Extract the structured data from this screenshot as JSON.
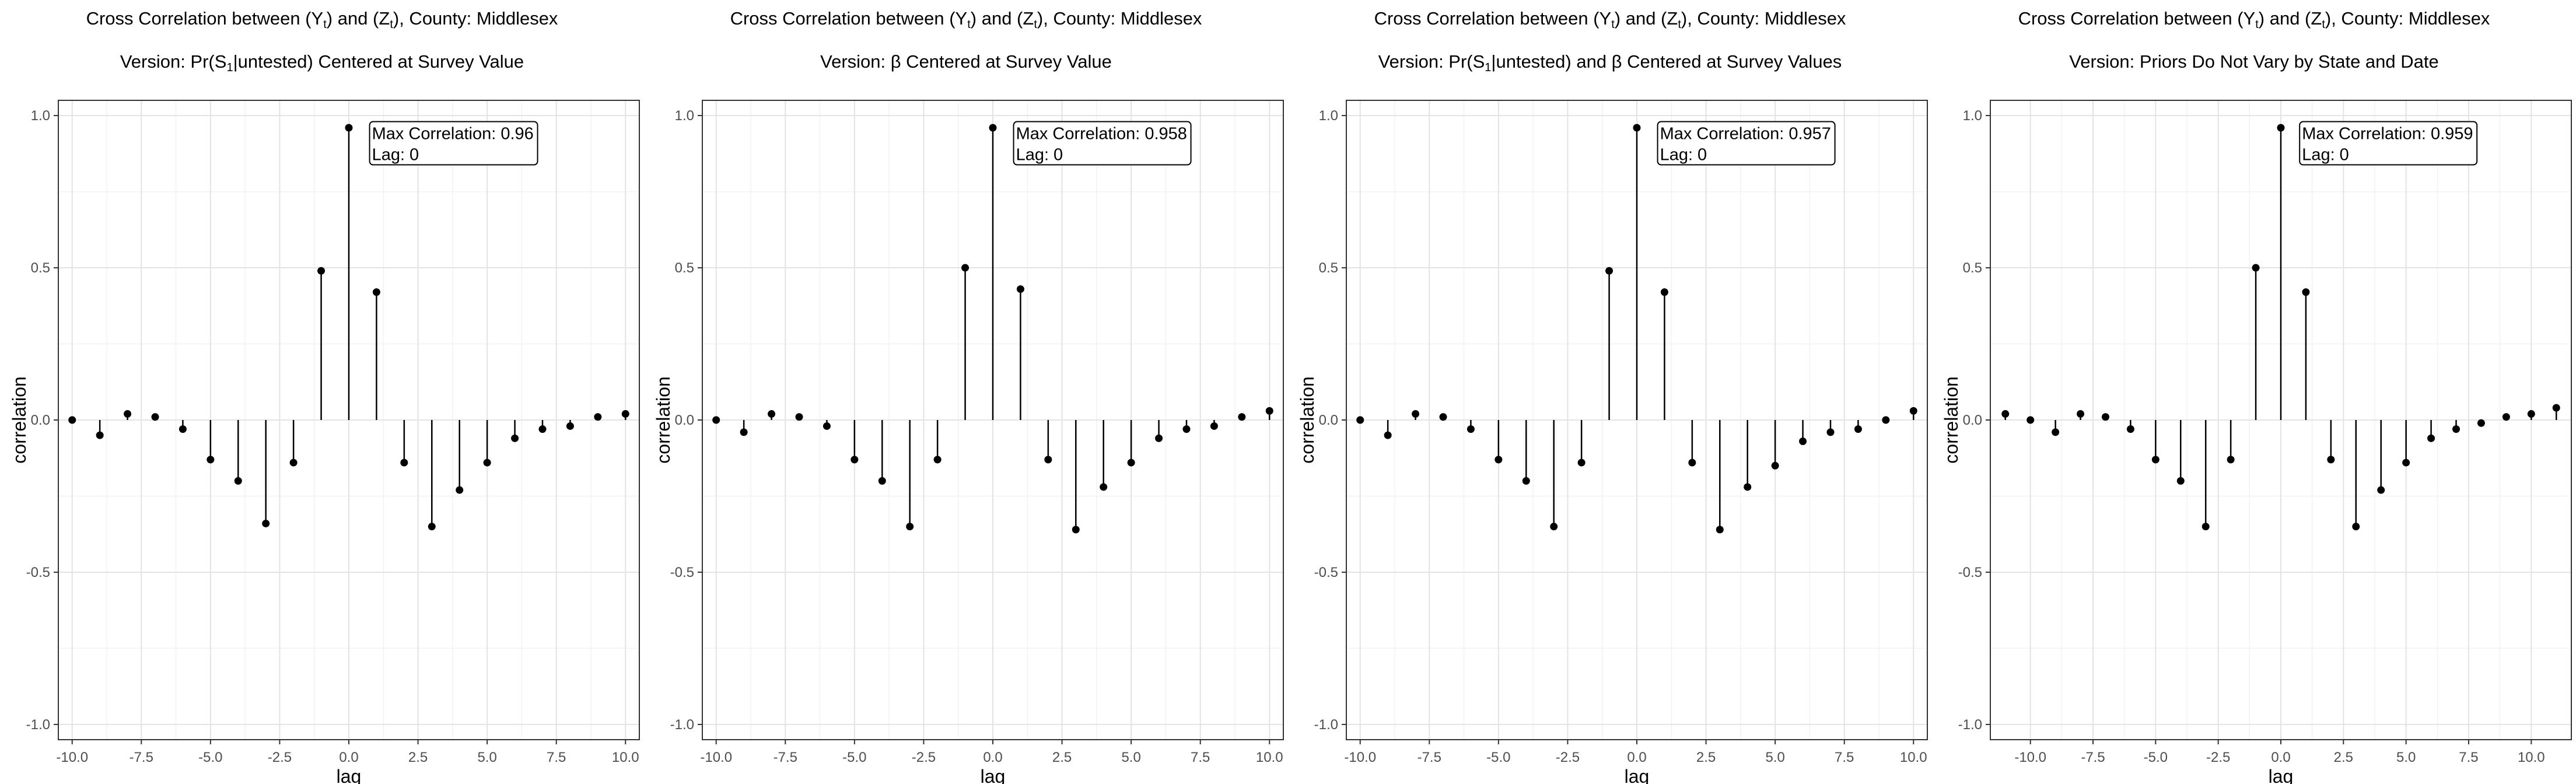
{
  "chart_data": [
    {
      "type": "stem",
      "title_line1": {
        "pre": "Cross Correlation between ",
        "var1": "Y",
        "mid": " and ",
        "var2": "Z",
        "post": ", County: Middlesex",
        "sub": "t"
      },
      "title_line2": {
        "text": "Version: Pr(S1|untested) Centered at Survey Value",
        "pre": "Version: Pr(S",
        "sub": "1",
        "post": "|untested) Centered at Survey Value"
      },
      "xlabel": "lag",
      "ylabel": "correlation",
      "xlim": [
        -10.5,
        10.5
      ],
      "ylim": [
        -1.05,
        1.05
      ],
      "xticks": [
        -10,
        -7.5,
        -5,
        -2.5,
        0,
        2.5,
        5,
        7.5,
        10
      ],
      "xtick_labels": [
        "-10.0",
        "-7.5",
        "-5.0",
        "-2.5",
        "0.0",
        "2.5",
        "5.0",
        "7.5",
        "10.0"
      ],
      "yticks": [
        -1,
        -0.5,
        0,
        0.5,
        1
      ],
      "ytick_labels": [
        "-1.0",
        "-0.5",
        "0.0",
        "0.5",
        "1.0"
      ],
      "x": [
        -10,
        -9,
        -8,
        -7,
        -6,
        -5,
        -4,
        -3,
        -2,
        -1,
        0,
        1,
        2,
        3,
        4,
        5,
        6,
        7,
        8,
        9,
        10
      ],
      "values": [
        0.0,
        -0.05,
        0.02,
        0.01,
        -0.03,
        -0.13,
        -0.2,
        -0.34,
        -0.14,
        0.49,
        0.96,
        0.42,
        -0.14,
        -0.35,
        -0.23,
        -0.14,
        -0.06,
        -0.03,
        -0.02,
        0.01,
        0.02
      ],
      "annotation": {
        "line1": "Max Correlation: 0.96",
        "line2": "Lag: 0",
        "x": 0.75,
        "y": 0.98
      },
      "grid": true
    },
    {
      "type": "stem",
      "title_line1": {
        "pre": "Cross Correlation between ",
        "var1": "Y",
        "mid": " and ",
        "var2": "Z",
        "post": ", County: Middlesex",
        "sub": "t"
      },
      "title_line2": {
        "text": "Version: β Centered at Survey Value",
        "pre": "Version: β Centered at Survey Value",
        "sub": "",
        "post": ""
      },
      "xlabel": "lag",
      "ylabel": "correlation",
      "xlim": [
        -10.5,
        10.5
      ],
      "ylim": [
        -1.05,
        1.05
      ],
      "xticks": [
        -10,
        -7.5,
        -5,
        -2.5,
        0,
        2.5,
        5,
        7.5,
        10
      ],
      "xtick_labels": [
        "-10.0",
        "-7.5",
        "-5.0",
        "-2.5",
        "0.0",
        "2.5",
        "5.0",
        "7.5",
        "10.0"
      ],
      "yticks": [
        -1,
        -0.5,
        0,
        0.5,
        1
      ],
      "ytick_labels": [
        "-1.0",
        "-0.5",
        "0.0",
        "0.5",
        "1.0"
      ],
      "x": [
        -10,
        -9,
        -8,
        -7,
        -6,
        -5,
        -4,
        -3,
        -2,
        -1,
        0,
        1,
        2,
        3,
        4,
        5,
        6,
        7,
        8,
        9,
        10
      ],
      "values": [
        0.0,
        -0.04,
        0.02,
        0.01,
        -0.02,
        -0.13,
        -0.2,
        -0.35,
        -0.13,
        0.5,
        0.96,
        0.43,
        -0.13,
        -0.36,
        -0.22,
        -0.14,
        -0.06,
        -0.03,
        -0.02,
        0.01,
        0.03
      ],
      "annotation": {
        "line1": "Max Correlation: 0.958",
        "line2": "Lag: 0",
        "x": 0.75,
        "y": 0.98
      },
      "grid": true
    },
    {
      "type": "stem",
      "title_line1": {
        "pre": "Cross Correlation between ",
        "var1": "Y",
        "mid": " and ",
        "var2": "Z",
        "post": ", County: Middlesex",
        "sub": "t"
      },
      "title_line2": {
        "text": "Version: Pr(S1|untested) and β Centered at Survey Values",
        "pre": "Version: Pr(S",
        "sub": "1",
        "post": "|untested) and β Centered at Survey Values"
      },
      "xlabel": "lag",
      "ylabel": "correlation",
      "xlim": [
        -10.5,
        10.5
      ],
      "ylim": [
        -1.05,
        1.05
      ],
      "xticks": [
        -10,
        -7.5,
        -5,
        -2.5,
        0,
        2.5,
        5,
        7.5,
        10
      ],
      "xtick_labels": [
        "-10.0",
        "-7.5",
        "-5.0",
        "-2.5",
        "0.0",
        "2.5",
        "5.0",
        "7.5",
        "10.0"
      ],
      "yticks": [
        -1,
        -0.5,
        0,
        0.5,
        1
      ],
      "ytick_labels": [
        "-1.0",
        "-0.5",
        "0.0",
        "0.5",
        "1.0"
      ],
      "x": [
        -10,
        -9,
        -8,
        -7,
        -6,
        -5,
        -4,
        -3,
        -2,
        -1,
        0,
        1,
        2,
        3,
        4,
        5,
        6,
        7,
        8,
        9,
        10
      ],
      "values": [
        0.0,
        -0.05,
        0.02,
        0.01,
        -0.03,
        -0.13,
        -0.2,
        -0.35,
        -0.14,
        0.49,
        0.96,
        0.42,
        -0.14,
        -0.36,
        -0.22,
        -0.15,
        -0.07,
        -0.04,
        -0.03,
        0.0,
        0.03
      ],
      "annotation": {
        "line1": "Max Correlation: 0.957",
        "line2": "Lag: 0",
        "x": 0.75,
        "y": 0.98
      },
      "grid": true
    },
    {
      "type": "stem",
      "title_line1": {
        "pre": "Cross Correlation between ",
        "var1": "Y",
        "mid": " and ",
        "var2": "Z",
        "post": ", County: Middlesex",
        "sub": "t"
      },
      "title_line2": {
        "text": "Version: Priors Do Not Vary by State and Date",
        "pre": "Version: Priors Do Not Vary by State and Date",
        "sub": "",
        "post": ""
      },
      "xlabel": "lag",
      "ylabel": "correlation",
      "xlim": [
        -11.6,
        11.6
      ],
      "ylim": [
        -1.05,
        1.05
      ],
      "xticks": [
        -10,
        -7.5,
        -5,
        -2.5,
        0,
        2.5,
        5,
        7.5,
        10
      ],
      "xtick_labels": [
        "-10.0",
        "-7.5",
        "-5.0",
        "-2.5",
        "0.0",
        "2.5",
        "5.0",
        "7.5",
        "10.0"
      ],
      "yticks": [
        -1,
        -0.5,
        0,
        0.5,
        1
      ],
      "ytick_labels": [
        "-1.0",
        "-0.5",
        "0.0",
        "0.5",
        "1.0"
      ],
      "x": [
        -11,
        -10,
        -9,
        -8,
        -7,
        -6,
        -5,
        -4,
        -3,
        -2,
        -1,
        0,
        1,
        2,
        3,
        4,
        5,
        6,
        7,
        8,
        9,
        10,
        11
      ],
      "values": [
        0.02,
        0.0,
        -0.04,
        0.02,
        0.01,
        -0.03,
        -0.13,
        -0.2,
        -0.35,
        -0.13,
        0.5,
        0.96,
        0.42,
        -0.13,
        -0.35,
        -0.23,
        -0.14,
        -0.06,
        -0.03,
        -0.01,
        0.01,
        0.02,
        0.04
      ],
      "annotation": {
        "line1": "Max Correlation: 0.959",
        "line2": "Lag: 0",
        "x": 0.75,
        "y": 0.98
      },
      "grid": true
    }
  ]
}
